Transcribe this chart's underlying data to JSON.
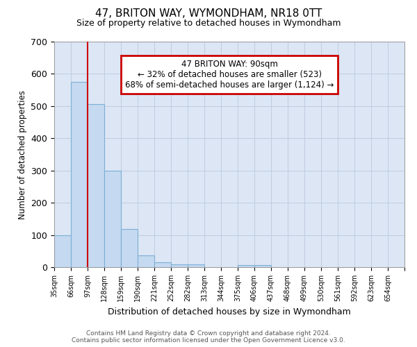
{
  "title": "47, BRITON WAY, WYMONDHAM, NR18 0TT",
  "subtitle": "Size of property relative to detached houses in Wymondham",
  "xlabel": "Distribution of detached houses by size in Wymondham",
  "ylabel": "Number of detached properties",
  "categories": [
    "35sqm",
    "66sqm",
    "97sqm",
    "128sqm",
    "159sqm",
    "190sqm",
    "221sqm",
    "252sqm",
    "282sqm",
    "313sqm",
    "344sqm",
    "375sqm",
    "406sqm",
    "437sqm",
    "468sqm",
    "499sqm",
    "530sqm",
    "561sqm",
    "592sqm",
    "623sqm",
    "654sqm"
  ],
  "values": [
    100,
    575,
    507,
    300,
    118,
    36,
    15,
    8,
    8,
    0,
    0,
    7,
    7,
    0,
    0,
    0,
    0,
    0,
    0,
    0,
    0
  ],
  "bar_color": "#c5d9f0",
  "bar_edge_color": "#7bafd4",
  "ylim": [
    0,
    700
  ],
  "yticks": [
    0,
    100,
    200,
    300,
    400,
    500,
    600,
    700
  ],
  "annotation_box_text": "47 BRITON WAY: 90sqm\n← 32% of detached houses are smaller (523)\n68% of semi-detached houses are larger (1,124) →",
  "annotation_box_color": "#ffffff",
  "annotation_box_edge_color": "#cc0000",
  "vline_color": "#cc0000",
  "footer_line1": "Contains HM Land Registry data © Crown copyright and database right 2024.",
  "footer_line2": "Contains public sector information licensed under the Open Government Licence v3.0.",
  "background_color": "#ffffff",
  "axes_bg_color": "#dce6f5",
  "grid_color": "#c0cce0"
}
